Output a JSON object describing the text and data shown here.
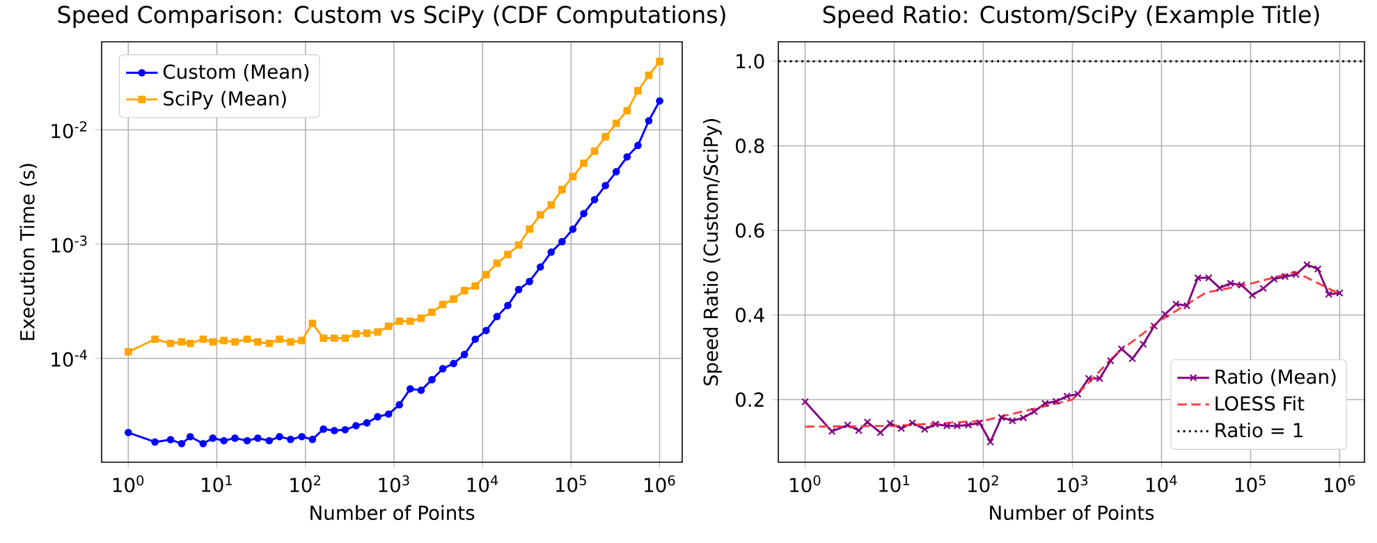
{
  "chart_data": [
    {
      "type": "line",
      "title": "Speed Comparison: Custom vs SciPy (CDF Computations)",
      "xlabel": "Number of Points",
      "ylabel": "Execution Time (s)",
      "x": [
        1,
        2,
        3,
        4,
        5,
        7,
        9,
        12,
        16,
        22,
        29,
        39,
        51,
        68,
        91,
        120,
        160,
        212,
        281,
        373,
        494,
        655,
        869,
        1151,
        1526,
        2024,
        2683,
        3556,
        4715,
        6251,
        8286,
        10985,
        14563,
        19307,
        25595,
        33932,
        44984,
        59636,
        79060,
        104811,
        138950,
        184207,
        244205,
        323746,
        429193,
        568987,
        754312,
        1000000
      ],
      "series": [
        {
          "name": "Custom (Mean)",
          "color": "#0000ff",
          "marker": "circle",
          "values": [
            2.24e-05,
            1.85e-05,
            1.94e-05,
            1.79e-05,
            2.06e-05,
            1.79e-05,
            2e-05,
            1.9e-05,
            2e-05,
            1.9e-05,
            2e-05,
            1.9e-05,
            2.06e-05,
            1.95e-05,
            2.06e-05,
            1.95e-05,
            2.4e-05,
            2.33e-05,
            2.37e-05,
            2.57e-05,
            2.72e-05,
            3.08e-05,
            3.25e-05,
            3.92e-05,
            5.4e-05,
            5.25e-05,
            6.5e-05,
            8.1e-05,
            9e-05,
            0.000108,
            0.000147,
            0.000175,
            0.000232,
            0.00029,
            0.0004,
            0.00047,
            0.00063,
            0.00085,
            0.00105,
            0.00135,
            0.00185,
            0.00245,
            0.00325,
            0.0043,
            0.0058,
            0.0073,
            0.012,
            0.0179
          ]
        },
        {
          "name": "SciPy (Mean)",
          "color": "#ffa500",
          "marker": "square",
          "values": [
            0.000114,
            0.000147,
            0.000135,
            0.000139,
            0.000135,
            0.000147,
            0.000139,
            0.000143,
            0.000139,
            0.000147,
            0.000139,
            0.000135,
            0.000147,
            0.000139,
            0.000143,
            0.000202,
            0.00015,
            0.00015,
            0.00015,
            0.000164,
            0.000166,
            0.00017,
            0.000191,
            0.000211,
            0.000211,
            0.000224,
            0.000253,
            0.000296,
            0.00033,
            0.000392,
            0.00043,
            0.00054,
            0.00068,
            0.00081,
            0.00098,
            0.00135,
            0.0018,
            0.0022,
            0.003,
            0.0039,
            0.0051,
            0.0065,
            0.0087,
            0.0114,
            0.0147,
            0.022,
            0.03,
            0.0396
          ]
        }
      ],
      "log": "xy",
      "xlim": [
        0.5,
        1800000
      ],
      "ylim": [
        1.23e-05,
        0.059
      ],
      "xticks": [
        {
          "value": 1,
          "label": "10$^{0}$"
        },
        {
          "value": 10,
          "label": "10$^{1}$"
        },
        {
          "value": 100,
          "label": "10$^{2}$"
        },
        {
          "value": 1000,
          "label": "10$^{3}$"
        },
        {
          "value": 10000,
          "label": "10$^{4}$"
        },
        {
          "value": 100000,
          "label": "10$^{5}$"
        },
        {
          "value": 1000000,
          "label": "10$^{6}$"
        }
      ],
      "yticks": [
        {
          "value": 0.0001,
          "label": "10$^{-4}$"
        },
        {
          "value": 0.001,
          "label": "10$^{-3}$"
        },
        {
          "value": 0.01,
          "label": "10$^{-2}$"
        }
      ],
      "grid": true,
      "legend": "top left"
    },
    {
      "type": "line",
      "title": "Speed Ratio: Custom/SciPy (Example Title)",
      "xlabel": "Number of Points",
      "ylabel": "Speed Ratio (Custom/SciPy)",
      "x": [
        1,
        2,
        3,
        4,
        5,
        7,
        9,
        12,
        16,
        22,
        29,
        39,
        51,
        68,
        91,
        120,
        160,
        212,
        281,
        373,
        494,
        655,
        869,
        1151,
        1526,
        2024,
        2683,
        3556,
        4715,
        6251,
        8286,
        10985,
        14563,
        19307,
        25595,
        33932,
        44984,
        59636,
        79060,
        104811,
        138950,
        184207,
        244205,
        323746,
        429193,
        568987,
        754312,
        1000000
      ],
      "series": [
        {
          "name": "Ratio (Mean)",
          "color": "#800080",
          "marker": "cross",
          "values": [
            0.195,
            0.125,
            0.14,
            0.127,
            0.147,
            0.122,
            0.144,
            0.132,
            0.145,
            0.13,
            0.142,
            0.138,
            0.138,
            0.14,
            0.145,
            0.1,
            0.158,
            0.15,
            0.157,
            0.172,
            0.191,
            0.196,
            0.208,
            0.213,
            0.25,
            0.25,
            0.292,
            0.32,
            0.297,
            0.331,
            0.374,
            0.402,
            0.426,
            0.422,
            0.488,
            0.488,
            0.464,
            0.475,
            0.471,
            0.447,
            0.463,
            0.485,
            0.491,
            0.496,
            0.519,
            0.509,
            0.449,
            0.452
          ]
        },
        {
          "name": "LOESS Fit",
          "type": "line",
          "color": "#ff4040",
          "line_style": "dashed",
          "marker": "none",
          "x": [
            1,
            10,
            100,
            1000,
            3162,
            10000,
            31623,
            100000,
            316228,
            1000000
          ],
          "values": [
            0.136,
            0.138,
            0.15,
            0.2,
            0.31,
            0.389,
            0.453,
            0.474,
            0.502,
            0.45
          ]
        }
      ],
      "log": "x",
      "xlim": [
        0.5,
        1900000
      ],
      "ylim": [
        0.052,
        1.046
      ],
      "xticks": [
        {
          "value": 1,
          "label": "10$^{0}$"
        },
        {
          "value": 10,
          "label": "10$^{1}$"
        },
        {
          "value": 100,
          "label": "10$^{2}$"
        },
        {
          "value": 1000,
          "label": "10$^{3}$"
        },
        {
          "value": 10000,
          "label": "10$^{4}$"
        },
        {
          "value": 100000,
          "label": "10$^{5}$"
        },
        {
          "value": 1000000,
          "label": "10$^{6}$"
        }
      ],
      "yticks": [
        {
          "value": 0.2,
          "label": "0.2"
        },
        {
          "value": 0.4,
          "label": "0.4"
        },
        {
          "value": 0.6,
          "label": "0.6"
        },
        {
          "value": 0.8,
          "label": "0.8"
        },
        {
          "value": 1.0,
          "label": "1.0"
        }
      ],
      "ref_lines": [
        {
          "axis": "y",
          "value": 1,
          "label": "Ratio = 1",
          "color": "#000000",
          "line_style": "dotted"
        }
      ],
      "grid": true,
      "legend": "bottom right"
    }
  ]
}
